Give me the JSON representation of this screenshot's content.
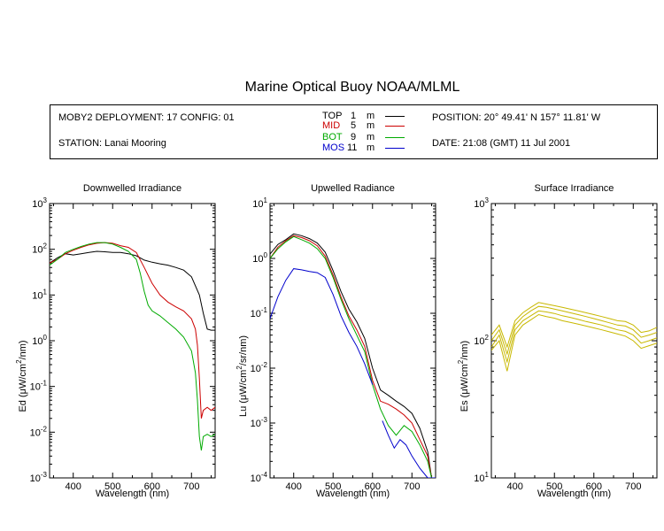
{
  "title": "Marine Optical Buoy NOAA/MLML",
  "info": {
    "deployment": "MOBY2 DEPLOYMENT: 17 CONFIG: 01",
    "station": "STATION: Lanai Mooring",
    "position": "POSITION: 20° 49.41' N   157° 11.81' W",
    "date": "DATE: 21:08 (GMT) 11 Jul 2001",
    "legend": [
      {
        "name": "TOP",
        "depth": "1",
        "unit": "m",
        "color": "#000000"
      },
      {
        "name": "MID",
        "depth": "5",
        "unit": "m",
        "color": "#cc0000"
      },
      {
        "name": "BOT",
        "depth": "9",
        "unit": "m",
        "color": "#00aa00"
      },
      {
        "name": "MOS",
        "depth": "11",
        "unit": "m",
        "color": "#0000cc"
      }
    ]
  },
  "chart_data": [
    {
      "type": "line",
      "title": "Downwelled Irradiance",
      "xlabel": "Wavelength (nm)",
      "ylabel_parts": [
        "Ed  (μW/cm",
        "2",
        "/nm)"
      ],
      "xlim": [
        340,
        760
      ],
      "xticks": [
        400,
        500,
        600,
        700
      ],
      "ylog": true,
      "ylim_exp": [
        -3,
        3
      ],
      "series": [
        {
          "color": "#000000",
          "x": [
            340,
            360,
            380,
            400,
            420,
            440,
            460,
            480,
            500,
            520,
            540,
            560,
            580,
            600,
            620,
            640,
            660,
            680,
            700,
            720,
            730,
            740,
            750,
            760
          ],
          "y": [
            50,
            65,
            80,
            75,
            80,
            85,
            90,
            88,
            85,
            85,
            80,
            72,
            58,
            52,
            48,
            45,
            40,
            35,
            25,
            10,
            4,
            1.8,
            1.7,
            1.7
          ]
        },
        {
          "color": "#cc0000",
          "x": [
            340,
            360,
            380,
            400,
            420,
            440,
            460,
            480,
            500,
            520,
            540,
            560,
            580,
            600,
            620,
            640,
            660,
            680,
            700,
            710,
            715,
            720,
            725,
            730,
            740,
            750,
            760
          ],
          "y": [
            50,
            60,
            80,
            95,
            110,
            125,
            135,
            140,
            135,
            120,
            110,
            85,
            40,
            18,
            10,
            7,
            5.5,
            4.5,
            3,
            1.8,
            0.8,
            0.15,
            0.02,
            0.03,
            0.035,
            0.03,
            0.035
          ]
        },
        {
          "color": "#00aa00",
          "x": [
            340,
            360,
            380,
            400,
            420,
            440,
            460,
            480,
            500,
            520,
            540,
            560,
            570,
            580,
            590,
            600,
            620,
            640,
            660,
            680,
            700,
            710,
            715,
            720,
            725,
            730,
            740,
            750,
            760
          ],
          "y": [
            45,
            60,
            85,
            100,
            115,
            130,
            140,
            140,
            130,
            110,
            90,
            60,
            30,
            12,
            6,
            4.5,
            3.5,
            2.5,
            1.8,
            1.2,
            0.6,
            0.2,
            0.05,
            0.008,
            0.004,
            0.008,
            0.009,
            0.008,
            0.009
          ]
        }
      ]
    },
    {
      "type": "line",
      "title": "Upwelled Radiance",
      "xlabel": "Wavelength (nm)",
      "ylabel_parts": [
        "Lu  (μW/cm",
        "2",
        "/sr/nm)"
      ],
      "xlim": [
        340,
        760
      ],
      "xticks": [
        400,
        500,
        600,
        700
      ],
      "ylog": true,
      "ylim_exp": [
        -4,
        1
      ],
      "series": [
        {
          "color": "#000000",
          "x": [
            340,
            360,
            380,
            400,
            420,
            440,
            460,
            480,
            500,
            520,
            540,
            560,
            580,
            600,
            620,
            640,
            660,
            680,
            700,
            720,
            740,
            750,
            760
          ],
          "y": [
            1.2,
            1.8,
            2.2,
            2.8,
            2.6,
            2.3,
            1.9,
            1.3,
            0.6,
            0.25,
            0.12,
            0.07,
            0.035,
            0.01,
            0.004,
            0.0032,
            0.0025,
            0.002,
            0.0015,
            0.0008,
            0.0003,
            0.0001,
            6e-05
          ]
        },
        {
          "color": "#cc0000",
          "x": [
            340,
            360,
            380,
            400,
            420,
            440,
            460,
            480,
            500,
            520,
            540,
            560,
            580,
            600,
            620,
            640,
            660,
            680,
            700,
            720,
            740,
            750,
            760
          ],
          "y": [
            1.0,
            1.6,
            2.1,
            2.6,
            2.4,
            2.1,
            1.7,
            1.1,
            0.5,
            0.2,
            0.09,
            0.05,
            0.025,
            0.006,
            0.0025,
            0.0022,
            0.0018,
            0.0014,
            0.001,
            0.0005,
            0.00025,
            0.0001,
            7e-05
          ]
        },
        {
          "color": "#00aa00",
          "x": [
            340,
            360,
            380,
            400,
            420,
            440,
            460,
            480,
            500,
            520,
            540,
            560,
            580,
            600,
            620,
            640,
            660,
            680,
            700,
            720,
            740,
            750,
            760
          ],
          "y": [
            1.0,
            1.5,
            2.0,
            2.5,
            2.2,
            1.9,
            1.5,
            1.0,
            0.45,
            0.18,
            0.08,
            0.04,
            0.02,
            0.005,
            0.0018,
            0.0009,
            0.0006,
            0.0009,
            0.0007,
            0.0004,
            0.0002,
            0.0001,
            7e-05
          ]
        },
        {
          "color": "#0000cc",
          "x": [
            340,
            360,
            380,
            400,
            420,
            440,
            460,
            480,
            500,
            520,
            540,
            560,
            580,
            600
          ],
          "y": [
            0.08,
            0.2,
            0.4,
            0.65,
            0.62,
            0.58,
            0.55,
            0.45,
            0.22,
            0.09,
            0.045,
            0.025,
            0.012,
            0.005
          ]
        },
        {
          "color": "#0000cc",
          "x": [
            625,
            640,
            655,
            670,
            685,
            700,
            720,
            740,
            760
          ],
          "y": [
            0.0011,
            0.0006,
            0.00035,
            0.0005,
            0.0004,
            0.00025,
            0.00015,
            8e-05,
            3e-05
          ]
        }
      ]
    },
    {
      "type": "line",
      "title": "Surface Irradiance",
      "xlabel": "Wavelength (nm)",
      "ylabel_parts": [
        "Es  (μW/cm",
        "2",
        "/nm)"
      ],
      "xlim": [
        340,
        760
      ],
      "xticks": [
        400,
        500,
        600,
        700
      ],
      "ylog": true,
      "ylim_exp": [
        1,
        3
      ],
      "series": [
        {
          "color": "#c8b800",
          "x": [
            340,
            360,
            380,
            400,
            420,
            440,
            460,
            480,
            500,
            520,
            540,
            560,
            580,
            600,
            620,
            640,
            660,
            680,
            700,
            720,
            740,
            760
          ],
          "y": [
            110,
            130,
            90,
            140,
            160,
            175,
            190,
            185,
            180,
            175,
            170,
            165,
            160,
            155,
            150,
            145,
            140,
            138,
            130,
            115,
            118,
            125
          ]
        },
        {
          "color": "#c8b800",
          "x": [
            340,
            360,
            380,
            400,
            420,
            440,
            460,
            480,
            500,
            520,
            540,
            560,
            580,
            600,
            620,
            640,
            660,
            680,
            700,
            720,
            740,
            760
          ],
          "y": [
            100,
            120,
            80,
            130,
            150,
            165,
            178,
            175,
            170,
            165,
            160,
            155,
            150,
            145,
            140,
            135,
            130,
            128,
            120,
            106,
            110,
            115
          ]
        },
        {
          "color": "#c8b800",
          "x": [
            340,
            360,
            380,
            400,
            420,
            440,
            460,
            480,
            500,
            520,
            540,
            560,
            580,
            600,
            620,
            640,
            660,
            680,
            700,
            720,
            740,
            760
          ],
          "y": [
            90,
            110,
            70,
            120,
            140,
            152,
            165,
            162,
            158,
            152,
            148,
            143,
            138,
            134,
            130,
            125,
            120,
            117,
            110,
            96,
            100,
            105
          ]
        },
        {
          "color": "#c8b800",
          "x": [
            340,
            360,
            380,
            400,
            420,
            440,
            460,
            480,
            500,
            520,
            540,
            560,
            580,
            600,
            620,
            640,
            660,
            680,
            700,
            720,
            740,
            760
          ],
          "y": [
            85,
            100,
            60,
            110,
            130,
            142,
            155,
            150,
            146,
            140,
            136,
            132,
            128,
            124,
            120,
            116,
            112,
            108,
            100,
            88,
            92,
            96
          ]
        }
      ]
    }
  ]
}
